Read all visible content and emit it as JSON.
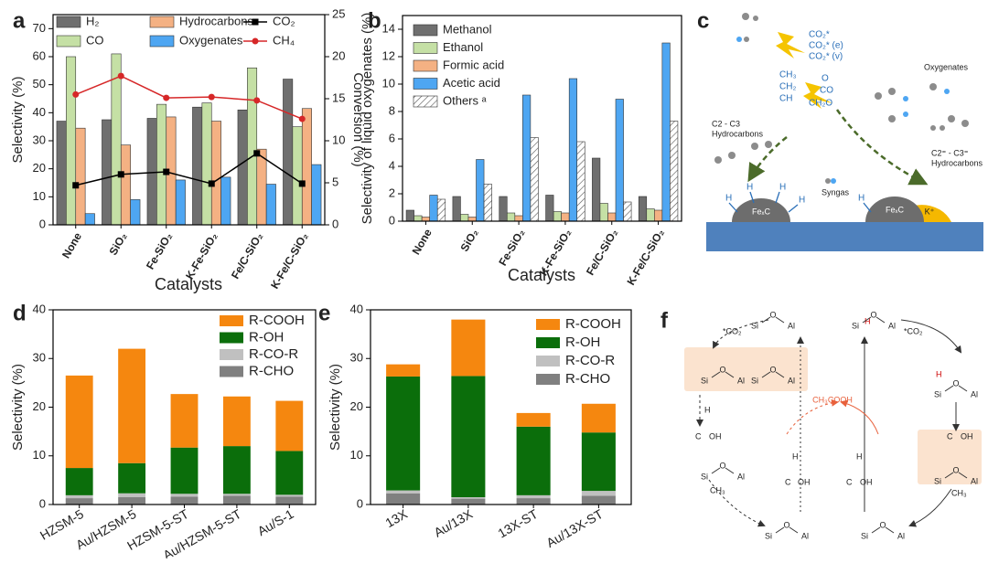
{
  "chart_data": [
    {
      "type": "bar",
      "panel": "a",
      "ylabel": "Selectivity (%)",
      "y2label": "Conversion (%)",
      "xlabel": "Catalysts",
      "categories": [
        "None",
        "SiO₂",
        "Fe-SiO₂",
        "K-Fe-SiO₂",
        "Fe/C-SiO₂",
        "K-Fe/C-SiO₂"
      ],
      "ylim": [
        0,
        75
      ],
      "yticks": [
        0,
        10,
        20,
        30,
        40,
        50,
        60,
        70
      ],
      "y2lim": [
        0,
        25
      ],
      "y2ticks": [
        0,
        5,
        10,
        15,
        20,
        25
      ],
      "grid": false,
      "legend": "upper left",
      "series": [
        {
          "name": "H₂",
          "color": "#6f6f6f",
          "values": [
            37,
            37.5,
            38,
            42,
            41,
            52
          ]
        },
        {
          "name": "CO",
          "color": "#c5e0a5",
          "values": [
            60,
            61,
            43,
            43.5,
            56,
            35
          ]
        },
        {
          "name": "Hydrocarbons",
          "color": "#f4b183",
          "values": [
            34.5,
            28.5,
            38.5,
            37,
            27,
            41.5
          ]
        },
        {
          "name": "Oxygenates",
          "color": "#4ea6f2",
          "values": [
            4,
            9,
            16,
            17,
            14.5,
            21.5
          ]
        },
        {
          "name": "CO₂",
          "color": "#000000",
          "type": "line",
          "marker": "square",
          "axis": "y2",
          "values": [
            4.7,
            6.0,
            6.3,
            4.9,
            8.5,
            4.9
          ]
        },
        {
          "name": "CH₄",
          "color": "#d62728",
          "type": "line",
          "marker": "circle",
          "axis": "y2",
          "values": [
            15.5,
            17.7,
            15.1,
            15.2,
            14.8,
            12.6
          ]
        }
      ]
    },
    {
      "type": "bar",
      "panel": "b",
      "ylabel": "Selectivity of liquid oxygenates (%)",
      "xlabel": "Catalysts",
      "categories": [
        "None",
        "SiO₂",
        "Fe-SiO₂",
        "K-Fe-SiO₂",
        "Fe/C-SiO₂",
        "K-Fe/C-SiO₂"
      ],
      "ylim": [
        0,
        15
      ],
      "yticks": [
        0,
        2,
        4,
        6,
        8,
        10,
        12,
        14
      ],
      "grid": false,
      "legend": "upper left",
      "series": [
        {
          "name": "Methanol",
          "color": "#6f6f6f",
          "values": [
            0.8,
            1.8,
            1.8,
            1.9,
            4.6,
            1.8
          ]
        },
        {
          "name": "Ethanol",
          "color": "#c5e0a5",
          "values": [
            0.4,
            0.5,
            0.6,
            0.7,
            1.3,
            0.9
          ]
        },
        {
          "name": "Formic acid",
          "color": "#f4b183",
          "values": [
            0.3,
            0.3,
            0.4,
            0.6,
            0.6,
            0.8
          ]
        },
        {
          "name": "Acetic acid",
          "color": "#4ea6f2",
          "values": [
            1.9,
            4.5,
            9.2,
            10.4,
            8.9,
            13.0
          ]
        },
        {
          "name": "Others ᵃ",
          "color": "#ffffff",
          "hatch": true,
          "values": [
            1.6,
            2.7,
            6.1,
            5.8,
            1.4,
            7.3
          ]
        }
      ]
    },
    {
      "type": "stacked_bar",
      "panel": "d",
      "ylabel": "Selectivity (%)",
      "categories": [
        "HZSM-5",
        "Au/HZSM-5",
        "HZSM-5-ST",
        "Au/HZSM-5-ST",
        "Au/S-1"
      ],
      "ylim": [
        0,
        40
      ],
      "yticks": [
        0,
        10,
        20,
        30,
        40
      ],
      "grid": false,
      "legend": "upper right",
      "series": [
        {
          "name": "R-CHO",
          "color": "#808080",
          "values": [
            1.3,
            1.5,
            1.6,
            1.8,
            1.6
          ]
        },
        {
          "name": "R-CO-R",
          "color": "#c0c0c0",
          "values": [
            0.6,
            0.8,
            0.6,
            0.4,
            0.4
          ]
        },
        {
          "name": "R-OH",
          "color": "#0b6e0b",
          "values": [
            5.6,
            6.2,
            9.5,
            9.8,
            9.0
          ]
        },
        {
          "name": "R-COOH",
          "color": "#f5870f",
          "values": [
            19,
            23.5,
            11,
            10.2,
            10.3
          ]
        }
      ]
    },
    {
      "type": "stacked_bar",
      "panel": "e",
      "ylabel": "Selectivity (%)",
      "categories": [
        "13X",
        "Au/13X",
        "13X-ST",
        "Au/13X-ST"
      ],
      "ylim": [
        0,
        40
      ],
      "yticks": [
        0,
        10,
        20,
        30,
        40
      ],
      "grid": false,
      "legend": "upper right",
      "series": [
        {
          "name": "R-CHO",
          "color": "#808080",
          "values": [
            2.3,
            1.2,
            1.3,
            1.8
          ]
        },
        {
          "name": "R-CO-R",
          "color": "#c0c0c0",
          "values": [
            0.6,
            0.3,
            0.6,
            1.0
          ]
        },
        {
          "name": "R-OH",
          "color": "#0b6e0b",
          "values": [
            23.4,
            24.9,
            14.1,
            12.0
          ]
        },
        {
          "name": "R-COOH",
          "color": "#f5870f",
          "values": [
            2.5,
            11.6,
            2.8,
            5.9
          ]
        }
      ]
    }
  ],
  "diagram_c": {
    "panel": "c",
    "species": [
      "CO₂*",
      "CO₂* (e)",
      "CO₂* (v)"
    ],
    "intermediates": [
      "CH₃",
      "CH₂",
      "CH"
    ],
    "oxy": [
      "O",
      "CO",
      "CH₂O"
    ],
    "oxygenates": "Oxygenates",
    "c2c3": "C2 - C3",
    "hydrocarbons": "Hydrocarbons",
    "syngas": "Syngas",
    "olefins": "C2⁼ - C3⁼",
    "carbide": "FeₓC",
    "k": "K⁺",
    "h": "H"
  },
  "diagram_f": {
    "panel": "f",
    "si": "Si",
    "o": "O",
    "al": "Al",
    "co2": "*CO₂",
    "product": "CH₃COOH",
    "h": "H",
    "ch3": "CH₃",
    "c": "C",
    "oh": "OH"
  }
}
